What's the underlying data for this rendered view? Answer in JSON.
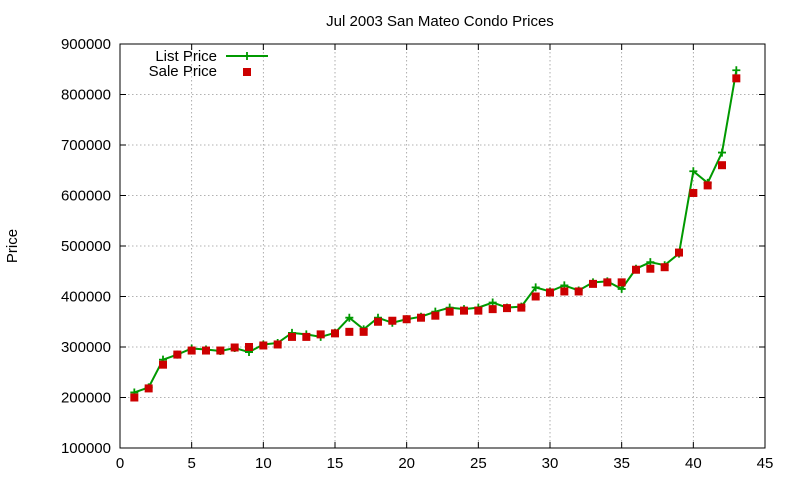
{
  "chart_data": {
    "type": "line",
    "title": "Jul 2003 San Mateo Condo Prices",
    "xlabel": "",
    "ylabel": "Price",
    "xlim": [
      0,
      45
    ],
    "ylim": [
      100000,
      900000
    ],
    "x_ticks": [
      0,
      5,
      10,
      15,
      20,
      25,
      30,
      35,
      40,
      45
    ],
    "y_ticks": [
      100000,
      200000,
      300000,
      400000,
      500000,
      600000,
      700000,
      800000,
      900000
    ],
    "grid": true,
    "legend_position": "top-left",
    "series": [
      {
        "name": "List Price",
        "style": "line-with-plus-markers",
        "color": "#009900",
        "x": [
          1,
          2,
          3,
          4,
          5,
          6,
          7,
          8,
          9,
          10,
          11,
          12,
          13,
          14,
          15,
          16,
          17,
          18,
          19,
          20,
          21,
          22,
          23,
          24,
          25,
          26,
          27,
          28,
          29,
          30,
          31,
          32,
          33,
          34,
          35,
          36,
          37,
          38,
          39,
          40,
          41,
          42,
          43
        ],
        "values": [
          210000,
          220000,
          275000,
          285000,
          297000,
          295000,
          292000,
          298000,
          290000,
          305000,
          308000,
          328000,
          325000,
          320000,
          328000,
          358000,
          335000,
          358000,
          348000,
          355000,
          360000,
          370000,
          378000,
          375000,
          378000,
          388000,
          378000,
          380000,
          418000,
          410000,
          422000,
          412000,
          428000,
          430000,
          415000,
          455000,
          468000,
          462000,
          485000,
          648000,
          625000,
          685000,
          848000
        ]
      },
      {
        "name": "Sale Price",
        "style": "square-markers",
        "color": "#cc0000",
        "x": [
          1,
          2,
          3,
          4,
          5,
          6,
          7,
          8,
          9,
          10,
          11,
          12,
          13,
          14,
          15,
          16,
          17,
          18,
          19,
          20,
          21,
          22,
          23,
          24,
          25,
          26,
          27,
          28,
          29,
          30,
          31,
          32,
          33,
          34,
          35,
          36,
          37,
          38,
          39,
          40,
          41,
          42,
          43
        ],
        "values": [
          200000,
          218000,
          265000,
          285000,
          293000,
          293000,
          293000,
          299000,
          300000,
          303000,
          305000,
          320000,
          320000,
          325000,
          327000,
          330000,
          330000,
          350000,
          352000,
          355000,
          358000,
          362000,
          370000,
          372000,
          372000,
          375000,
          377000,
          378000,
          400000,
          408000,
          410000,
          410000,
          425000,
          428000,
          428000,
          453000,
          455000,
          458000,
          487000,
          605000,
          620000,
          660000,
          832000
        ]
      }
    ]
  }
}
